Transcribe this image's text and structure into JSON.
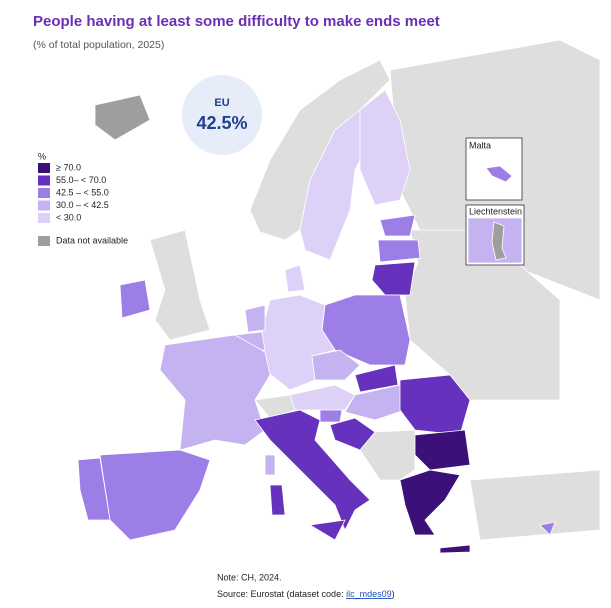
{
  "header": {
    "title": "People having at least some difficulty to make ends meet",
    "subtitle": "(% of total population, 2025)"
  },
  "badge": {
    "label": "EU",
    "value": "42.5%"
  },
  "legend": {
    "title": "%",
    "items": [
      {
        "label": "≥ 70.0",
        "color": "#3b1078"
      },
      {
        "label": "55.0– < 70.0",
        "color": "#6631bd"
      },
      {
        "label": "42.5 – < 55.0",
        "color": "#9d7ee6"
      },
      {
        "label": "30.0 – < 42.5",
        "color": "#c5b2f1"
      },
      {
        "label": "< 30.0",
        "color": "#ddd1f8"
      },
      {
        "label": "Data not available",
        "color": "#9e9e9e"
      }
    ]
  },
  "insets": [
    "Malta",
    "Liechtenstein"
  ],
  "notes": {
    "note": "Note: CH, 2024.",
    "source_prefix": "Source: Eurostat (dataset code: ",
    "source_link": "ilc_mdes09",
    "source_suffix": ")"
  }
}
